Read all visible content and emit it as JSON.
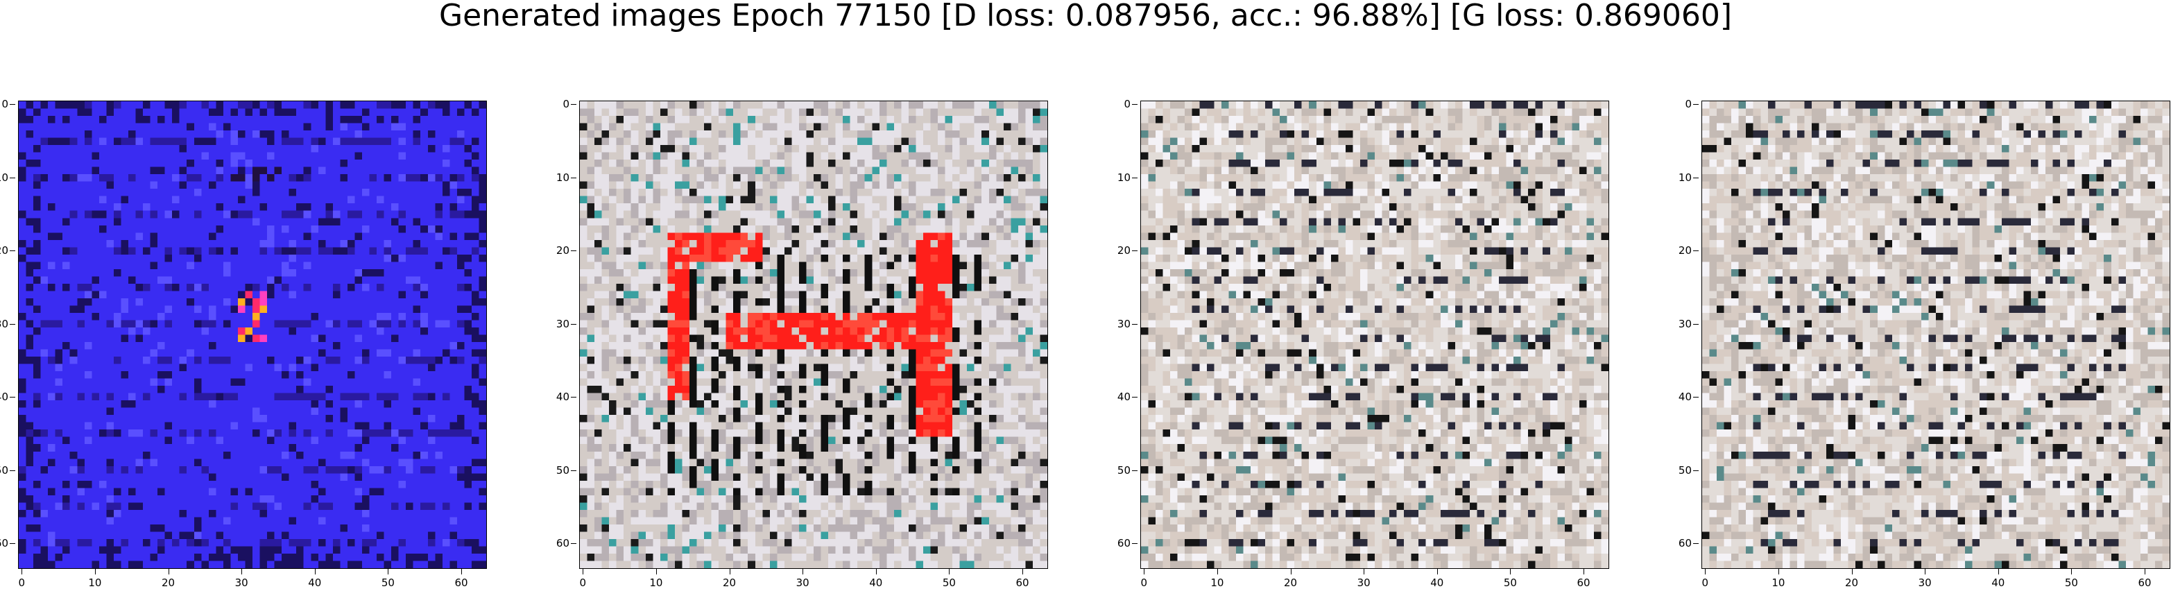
{
  "title": "Generated images Epoch 77150 [D loss: 0.087956, acc.: 96.88%] [G loss: 0.869060]",
  "axes": {
    "x_ticks": [
      "0",
      "10",
      "20",
      "30",
      "40",
      "50",
      "60"
    ],
    "y_ticks": [
      "0",
      "10",
      "20",
      "30",
      "40",
      "50",
      "60"
    ],
    "x_tick_values": [
      0,
      10,
      20,
      30,
      40,
      50,
      60
    ],
    "y_tick_values": [
      0,
      10,
      20,
      30,
      40,
      50,
      60
    ],
    "xlim": [
      -0.5,
      63.5
    ],
    "ylim": [
      63.5,
      -0.5
    ]
  },
  "panels": [
    {
      "name": "generated-image-1",
      "style": "blue",
      "base_color": "#3a2cf2"
    },
    {
      "name": "generated-image-2",
      "style": "red-shape",
      "base_color": "#d8d2d4"
    },
    {
      "name": "generated-image-3",
      "style": "noise",
      "base_color": "#e2dcd8"
    },
    {
      "name": "generated-image-4",
      "style": "noise-faint",
      "base_color": "#e4dedc"
    }
  ]
}
